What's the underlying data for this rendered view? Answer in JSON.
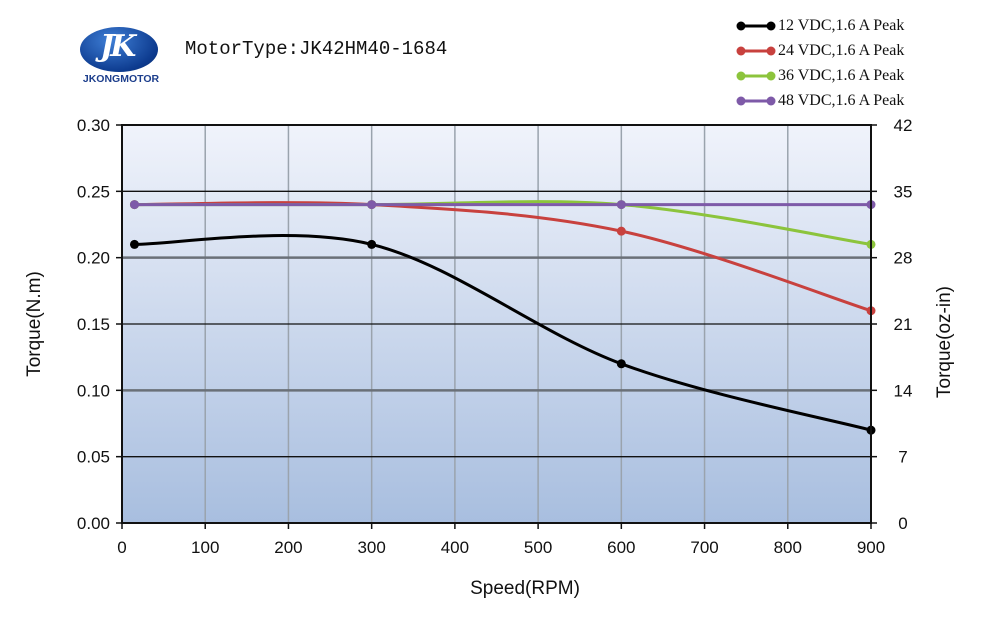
{
  "logo": {
    "text": "JKONGMOTOR"
  },
  "header": {
    "motor_type": "MotorType:JK42HM40-1684"
  },
  "chart_data": {
    "type": "line",
    "title": "MotorType:JK42HM40-1684",
    "xlabel": "Speed(RPM)",
    "ylabel": "Torque(N.m)",
    "y2label": "Torque(oz-in)",
    "xlim": [
      0,
      900
    ],
    "ylim": [
      0,
      0.3
    ],
    "y2lim": [
      0,
      42
    ],
    "xticks": [
      "0",
      "100",
      "200",
      "300",
      "400",
      "500",
      "600",
      "700",
      "800",
      "900"
    ],
    "yticks": [
      "0.00",
      "0.05",
      "0.10",
      "0.15",
      "0.20",
      "0.25",
      "0.30"
    ],
    "y2ticks": [
      "0",
      "7",
      "14",
      "21",
      "28",
      "35",
      "42"
    ],
    "grid": true,
    "legend_position": "top-right",
    "series": [
      {
        "name": "12 VDC,1.6 A Peak",
        "color": "#000000",
        "x": [
          15,
          300,
          600,
          900
        ],
        "y": [
          0.21,
          0.21,
          0.12,
          0.07
        ]
      },
      {
        "name": "24 VDC,1.6 A Peak",
        "color": "#c8413e",
        "x": [
          15,
          300,
          600,
          900
        ],
        "y": [
          0.24,
          0.24,
          0.22,
          0.16
        ]
      },
      {
        "name": "36 VDC,1.6 A Peak",
        "color": "#8cc43c",
        "x": [
          15,
          300,
          600,
          900
        ],
        "y": [
          0.24,
          0.24,
          0.24,
          0.21
        ]
      },
      {
        "name": "48 VDC,1.6 A Peak",
        "color": "#7e5aa8",
        "x": [
          15,
          300,
          600,
          900
        ],
        "y": [
          0.24,
          0.24,
          0.24,
          0.24
        ]
      }
    ]
  }
}
